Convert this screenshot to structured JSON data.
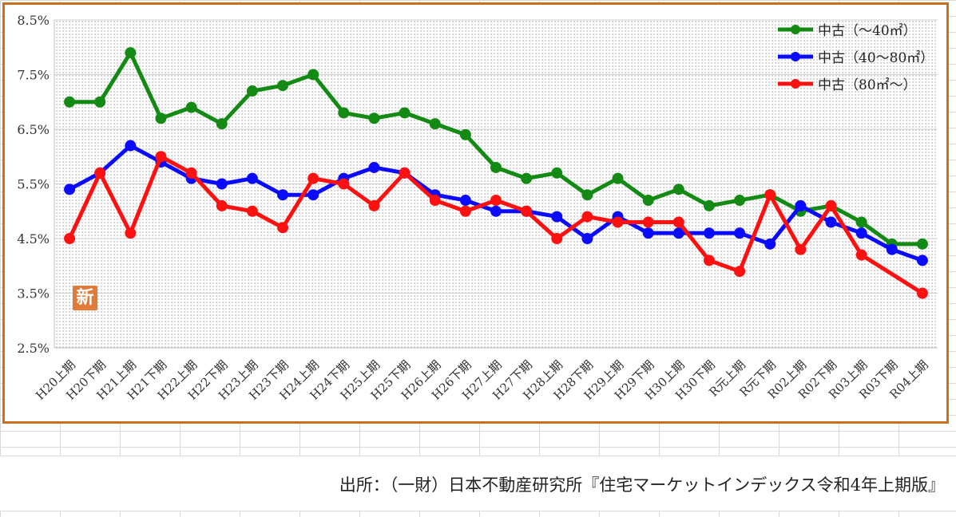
{
  "chart_data": {
    "type": "line",
    "categories": [
      "H20上期",
      "H20下期",
      "H21上期",
      "H21下期",
      "H22上期",
      "H22下期",
      "H23上期",
      "H23下期",
      "H24上期",
      "H24下期",
      "H25上期",
      "H25下期",
      "H26上期",
      "H26下期",
      "H27上期",
      "H27下期",
      "H28上期",
      "H28下期",
      "H29上期",
      "H29下期",
      "H30上期",
      "H30下期",
      "R元上期",
      "R元下期",
      "R02上期",
      "R02下期",
      "R03上期",
      "R03下期",
      "R04上期"
    ],
    "series": [
      {
        "name": "中古（～40㎡）",
        "color": "#138a13",
        "values": [
          7.0,
          7.0,
          7.9,
          6.7,
          6.9,
          6.6,
          7.2,
          7.3,
          7.5,
          6.8,
          6.7,
          6.8,
          6.6,
          6.4,
          5.8,
          5.6,
          5.7,
          5.3,
          5.6,
          5.2,
          5.4,
          5.1,
          5.2,
          5.3,
          5.0,
          5.1,
          4.8,
          4.4,
          4.4
        ]
      },
      {
        "name": "中古（40～80㎡）",
        "color": "#0a0aff",
        "values": [
          5.4,
          5.7,
          6.2,
          5.9,
          5.6,
          5.5,
          5.6,
          5.3,
          5.3,
          5.6,
          5.8,
          5.7,
          5.3,
          5.2,
          5.0,
          5.0,
          4.9,
          4.5,
          4.9,
          4.6,
          4.6,
          4.6,
          4.6,
          4.4,
          5.1,
          4.8,
          4.6,
          4.3,
          4.1
        ]
      },
      {
        "name": "中古（80㎡～）",
        "color": "#ff1010",
        "values": [
          4.5,
          5.7,
          4.6,
          6.0,
          5.7,
          5.1,
          5.0,
          4.7,
          5.6,
          5.5,
          5.1,
          5.7,
          5.2,
          5.0,
          5.2,
          5.0,
          4.5,
          4.9,
          4.8,
          4.8,
          4.8,
          4.1,
          3.9,
          5.3,
          4.3,
          5.1,
          4.2,
          null,
          3.5
        ]
      }
    ],
    "yticks": [
      "2.5%",
      "3.5%",
      "4.5%",
      "5.5%",
      "6.5%",
      "7.5%",
      "8.5%"
    ],
    "ylim": [
      2.5,
      8.5
    ],
    "grid": true,
    "legend": "top-right"
  },
  "badge": "新",
  "source": "出所：（一財）日本不動産研究所『住宅マーケットインデックス令和4年上期版』"
}
